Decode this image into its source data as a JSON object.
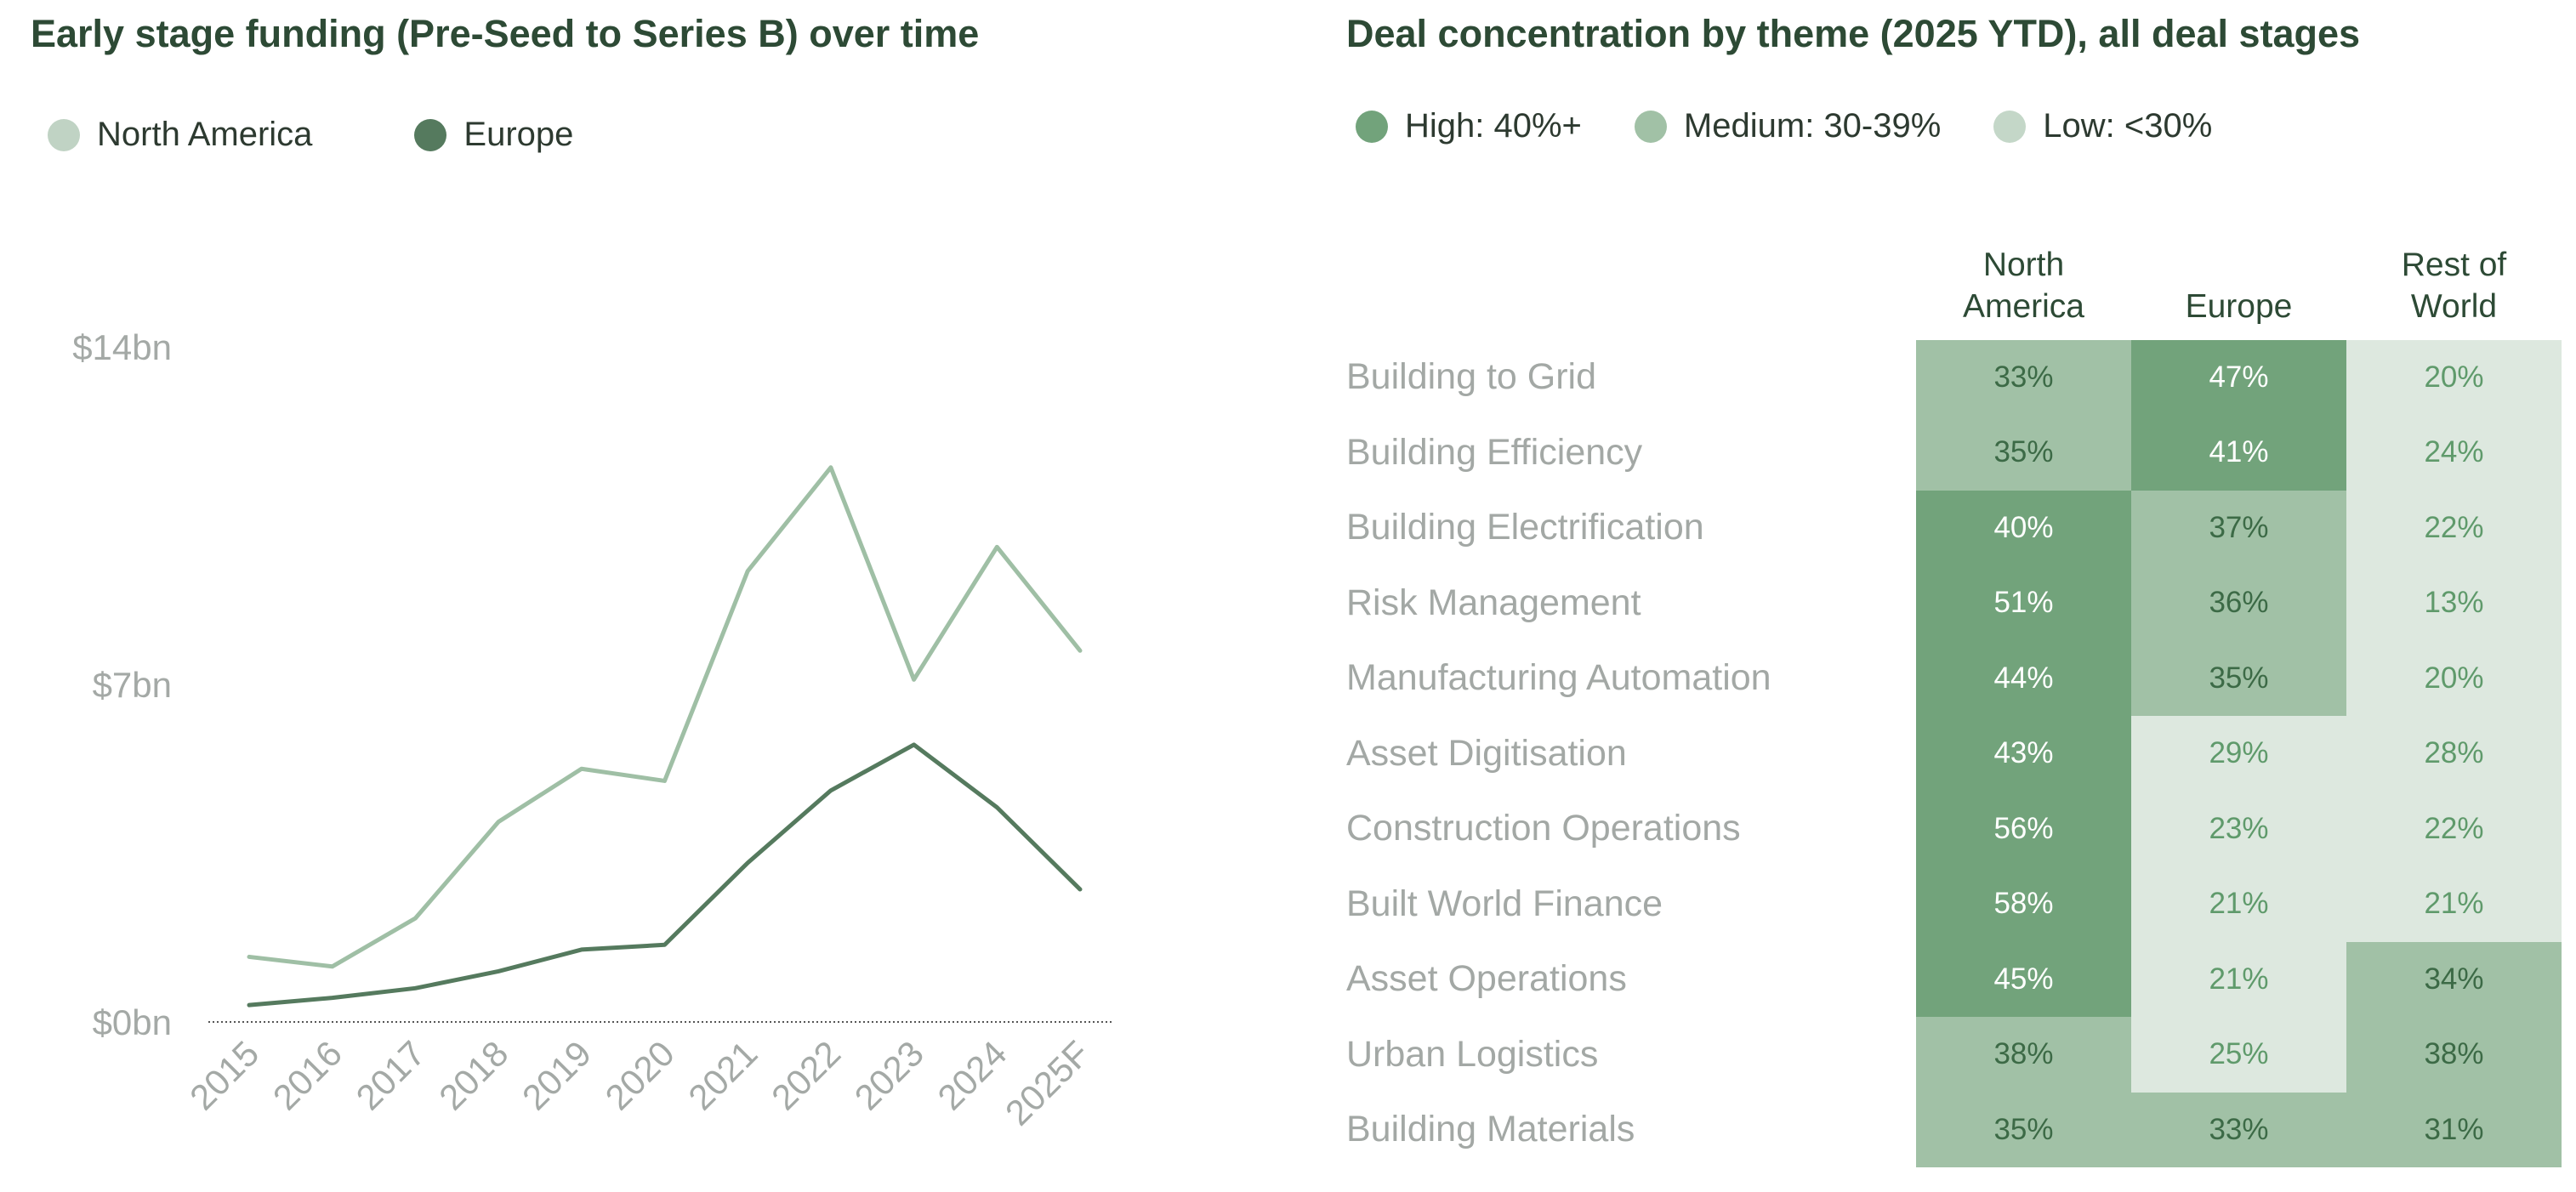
{
  "left_title": "Early stage funding (Pre-Seed to Series B) over time",
  "right_title": "Deal concentration by theme (2025 YTD), all deal stages",
  "colors": {
    "north_america_line": "#9fbfa5",
    "north_america_dot": "#c0d3c4",
    "europe_line": "#557a5e",
    "high": "#72a37b",
    "medium": "#a1c1a6",
    "low": "#dde8df",
    "title": "#2d4a35",
    "muted_text": "#a3a8a5"
  },
  "line_legend": [
    {
      "label": "North America",
      "color": "#c0d3c4"
    },
    {
      "label": "Europe",
      "color": "#557a5e"
    }
  ],
  "heat_legend": [
    {
      "label": "High: 40%+",
      "color": "#72a37b"
    },
    {
      "label": "Medium: 30-39%",
      "color": "#a1c1a6"
    },
    {
      "label": "Low: <30%",
      "color": "#c4d7c8"
    }
  ],
  "chart_data": [
    {
      "type": "line",
      "title": "Early stage funding (Pre-Seed to Series B) over time",
      "categories": [
        "2015",
        "2016",
        "2017",
        "2018",
        "2019",
        "2020",
        "2021",
        "2022",
        "2023",
        "2024",
        "2025F"
      ],
      "ylim": [
        0,
        14
      ],
      "yticks": [
        {
          "value": 0,
          "label": "$0bn"
        },
        {
          "value": 7,
          "label": "$7bn"
        },
        {
          "value": 14,
          "label": "$14bn"
        }
      ],
      "series": [
        {
          "name": "North America",
          "color": "#9fbfa5",
          "values": [
            1.35,
            1.15,
            2.15,
            4.15,
            5.25,
            5.0,
            9.35,
            11.5,
            7.1,
            9.85,
            7.7
          ]
        },
        {
          "name": "Europe",
          "color": "#557a5e",
          "values": [
            0.35,
            0.5,
            0.7,
            1.05,
            1.5,
            1.6,
            3.3,
            4.8,
            5.75,
            4.45,
            2.75
          ]
        }
      ],
      "legend": "top-left",
      "grid": false
    },
    {
      "type": "heatmap",
      "title": "Deal concentration by theme (2025 YTD), all deal stages",
      "columns": [
        "North\nAmerica",
        "Europe",
        "Rest of\nWorld"
      ],
      "rows": [
        "Building to Grid",
        "Building Efficiency",
        "Building Electrification",
        "Risk Management",
        "Manufacturing Automation",
        "Asset Digitisation",
        "Construction Operations",
        "Built World Finance",
        "Asset Operations",
        "Urban Logistics",
        "Building Materials"
      ],
      "values": [
        [
          33,
          47,
          20
        ],
        [
          35,
          41,
          24
        ],
        [
          40,
          37,
          22
        ],
        [
          51,
          36,
          13
        ],
        [
          44,
          35,
          20
        ],
        [
          43,
          29,
          28
        ],
        [
          56,
          23,
          22
        ],
        [
          58,
          21,
          21
        ],
        [
          45,
          21,
          34
        ],
        [
          38,
          25,
          38
        ],
        [
          35,
          33,
          31
        ]
      ],
      "unit": "%",
      "bins": {
        "high_min": 40,
        "medium_min": 30
      }
    }
  ]
}
